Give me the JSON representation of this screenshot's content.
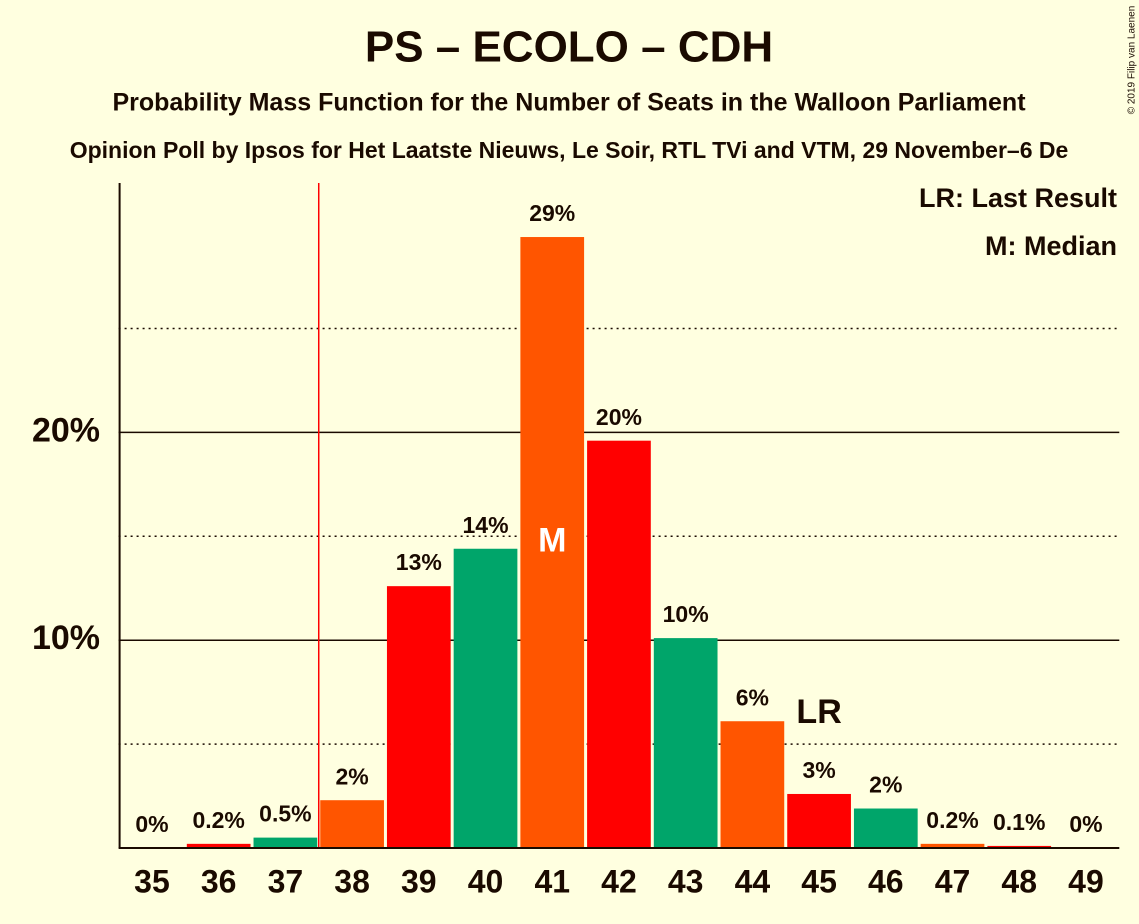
{
  "chart_data": {
    "type": "bar",
    "title": "PS – ECOLO – CDH",
    "subtitle": "Probability Mass Function for the Number of Seats in the Walloon Parliament",
    "subtitle2": "Opinion Poll by Ipsos for Het Laatste Nieuws, Le Soir, RTL TVi and VTM, 29 November–6 De",
    "copyright": "© 2019 Filip van Laenen",
    "categories": [
      "35",
      "36",
      "37",
      "38",
      "39",
      "40",
      "41",
      "42",
      "43",
      "44",
      "45",
      "46",
      "47",
      "48",
      "49"
    ],
    "values": [
      0,
      0.2,
      0.5,
      2.3,
      12.6,
      14.4,
      29.4,
      19.6,
      10.1,
      6.1,
      2.6,
      1.9,
      0.2,
      0.1,
      0
    ],
    "value_labels": [
      "0%",
      "0.2%",
      "0.5%",
      "2%",
      "13%",
      "14%",
      "29%",
      "20%",
      "10%",
      "6%",
      "3%",
      "2%",
      "0.2%",
      "0.1%",
      "0%"
    ],
    "colors": [
      "#ff5500",
      "#ff0000",
      "#00a56a",
      "#ff5500",
      "#ff0000",
      "#00a56a",
      "#ff5500",
      "#ff0000",
      "#00a56a",
      "#ff5500",
      "#ff0000",
      "#00a56a",
      "#ff5500",
      "#ff0000",
      "#00a56a"
    ],
    "ylim": [
      0,
      32
    ],
    "yticks": [
      {
        "value": 10,
        "label": "10%"
      },
      {
        "value": 20,
        "label": "20%"
      }
    ],
    "minor_yticks": [
      5,
      15,
      25
    ],
    "grid": true,
    "majority": "38",
    "median": "41",
    "median_label": "M",
    "last_result": "45",
    "last_result_label": "LR",
    "legend": [
      "LR: Last Result",
      "M: Median"
    ],
    "legend_position": "top-right"
  }
}
